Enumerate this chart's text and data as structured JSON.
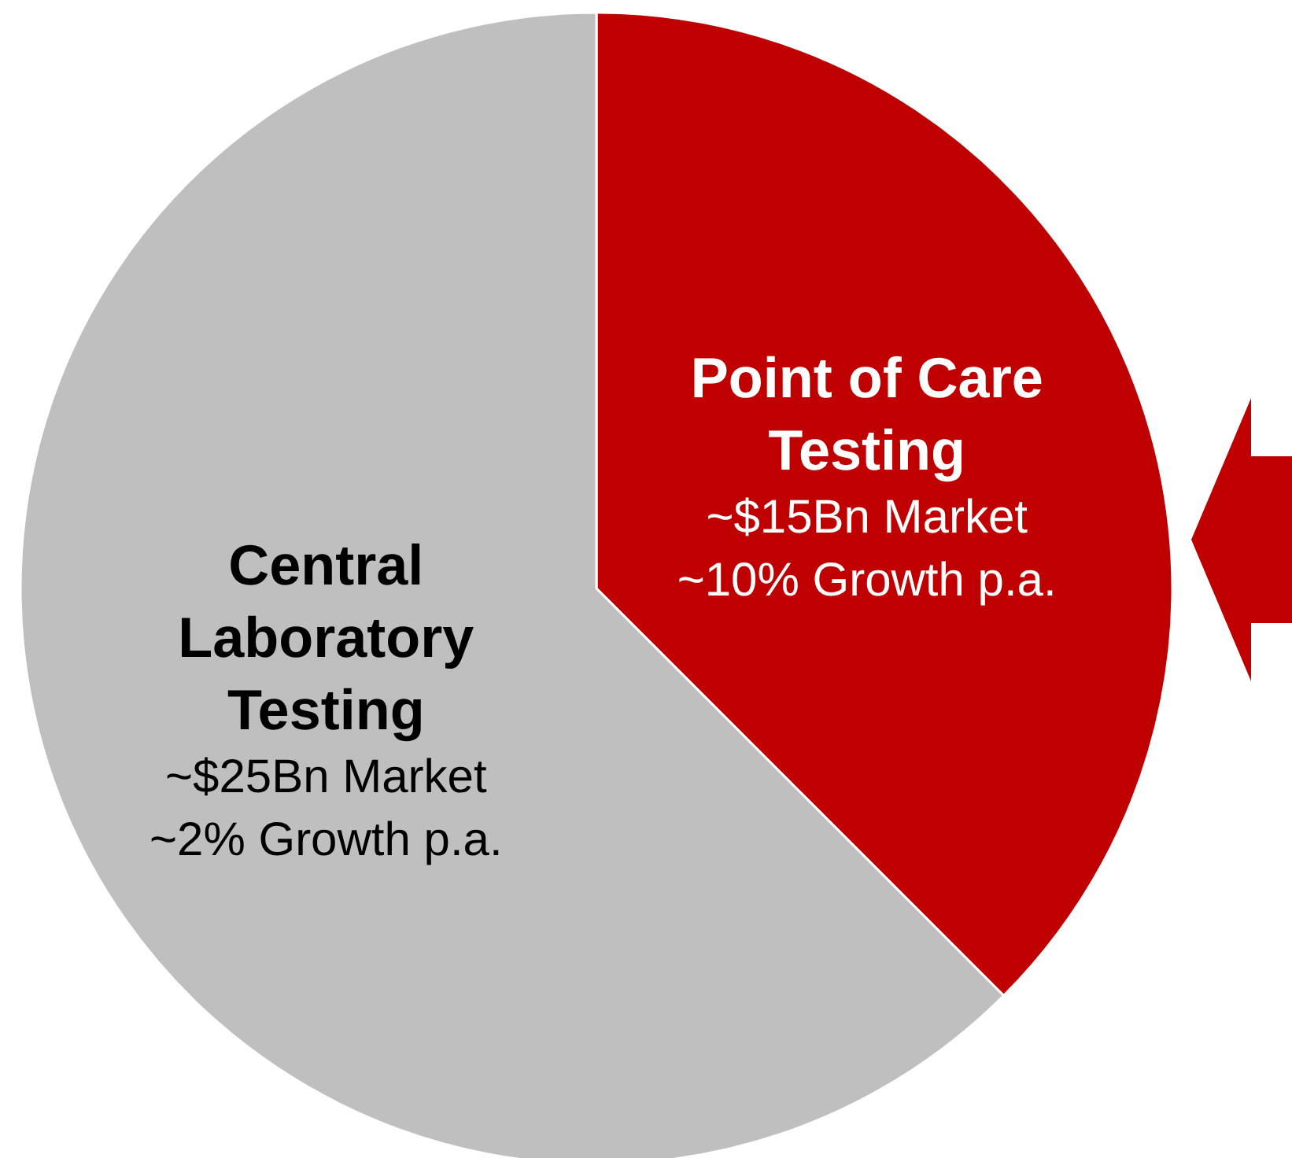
{
  "chart_data": {
    "type": "pie",
    "categories": [
      "Point of Care Testing",
      "Central Laboratory Testing"
    ],
    "values": [
      15,
      25
    ],
    "colors": [
      "#c00000",
      "#bfbfbf"
    ],
    "value_labels": [
      "~$15Bn Market\n~10% Growth p.a.",
      "~$25Bn Market\n~2% Growth p.a."
    ],
    "legend": false
  }
}
